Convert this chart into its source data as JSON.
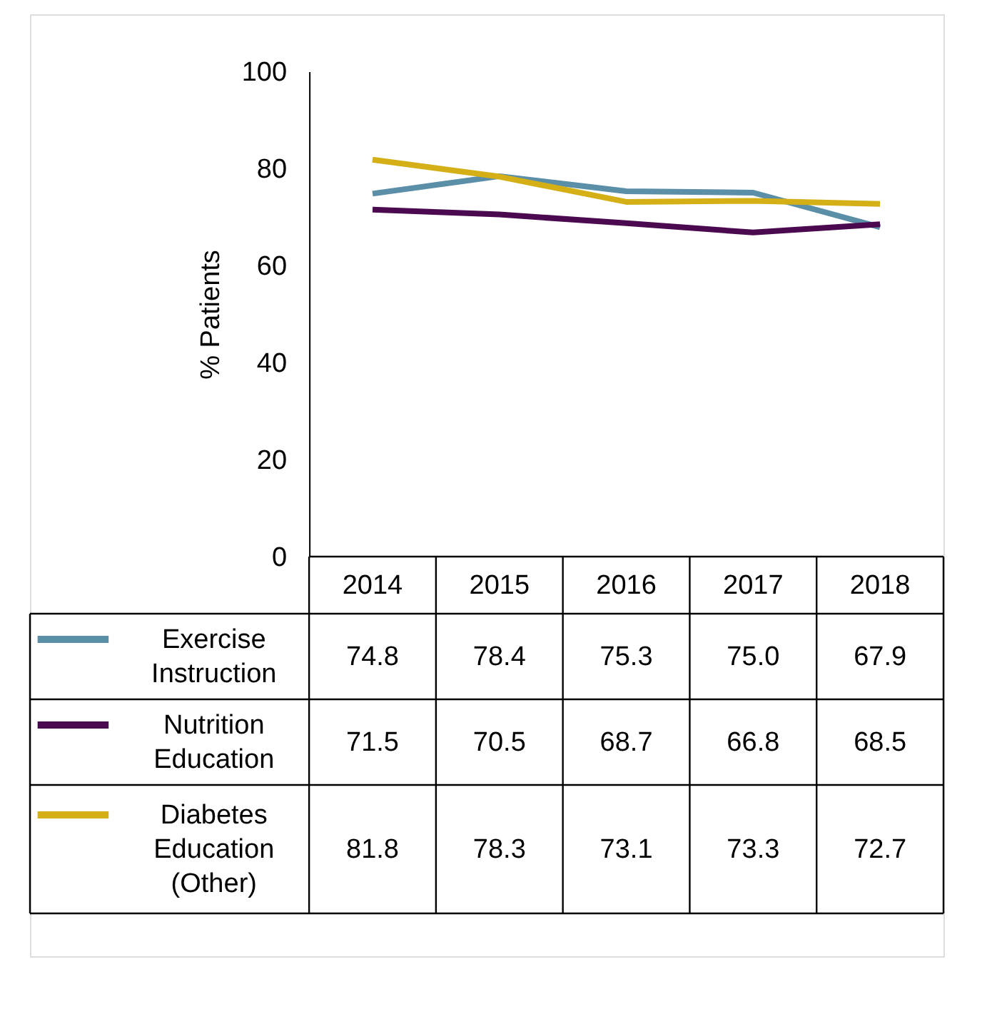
{
  "chart_data": {
    "type": "line",
    "ylabel": "% Patients",
    "categories": [
      "2014",
      "2015",
      "2016",
      "2017",
      "2018"
    ],
    "series": [
      {
        "name": "Exercise Instruction",
        "color": "#5b8fa8",
        "values": [
          74.8,
          78.4,
          75.3,
          75.0,
          67.9
        ],
        "value_labels": [
          "74.8",
          "78.4",
          "75.3",
          "75.0",
          "67.9"
        ]
      },
      {
        "name": "Nutrition Education",
        "color": "#4b0a4f",
        "values": [
          71.5,
          70.5,
          68.7,
          66.8,
          68.5
        ],
        "value_labels": [
          "71.5",
          "70.5",
          "68.7",
          "66.8",
          "68.5"
        ]
      },
      {
        "name": "Diabetes Education (Other)",
        "color": "#d4b016",
        "values": [
          81.8,
          78.3,
          73.1,
          73.3,
          72.7
        ],
        "value_labels": [
          "81.8",
          "78.3",
          "73.1",
          "73.3",
          "72.7"
        ]
      }
    ],
    "ylim": [
      0,
      100
    ],
    "yticks": [
      0,
      20,
      40,
      60,
      80,
      100
    ],
    "legend": "bottom"
  }
}
